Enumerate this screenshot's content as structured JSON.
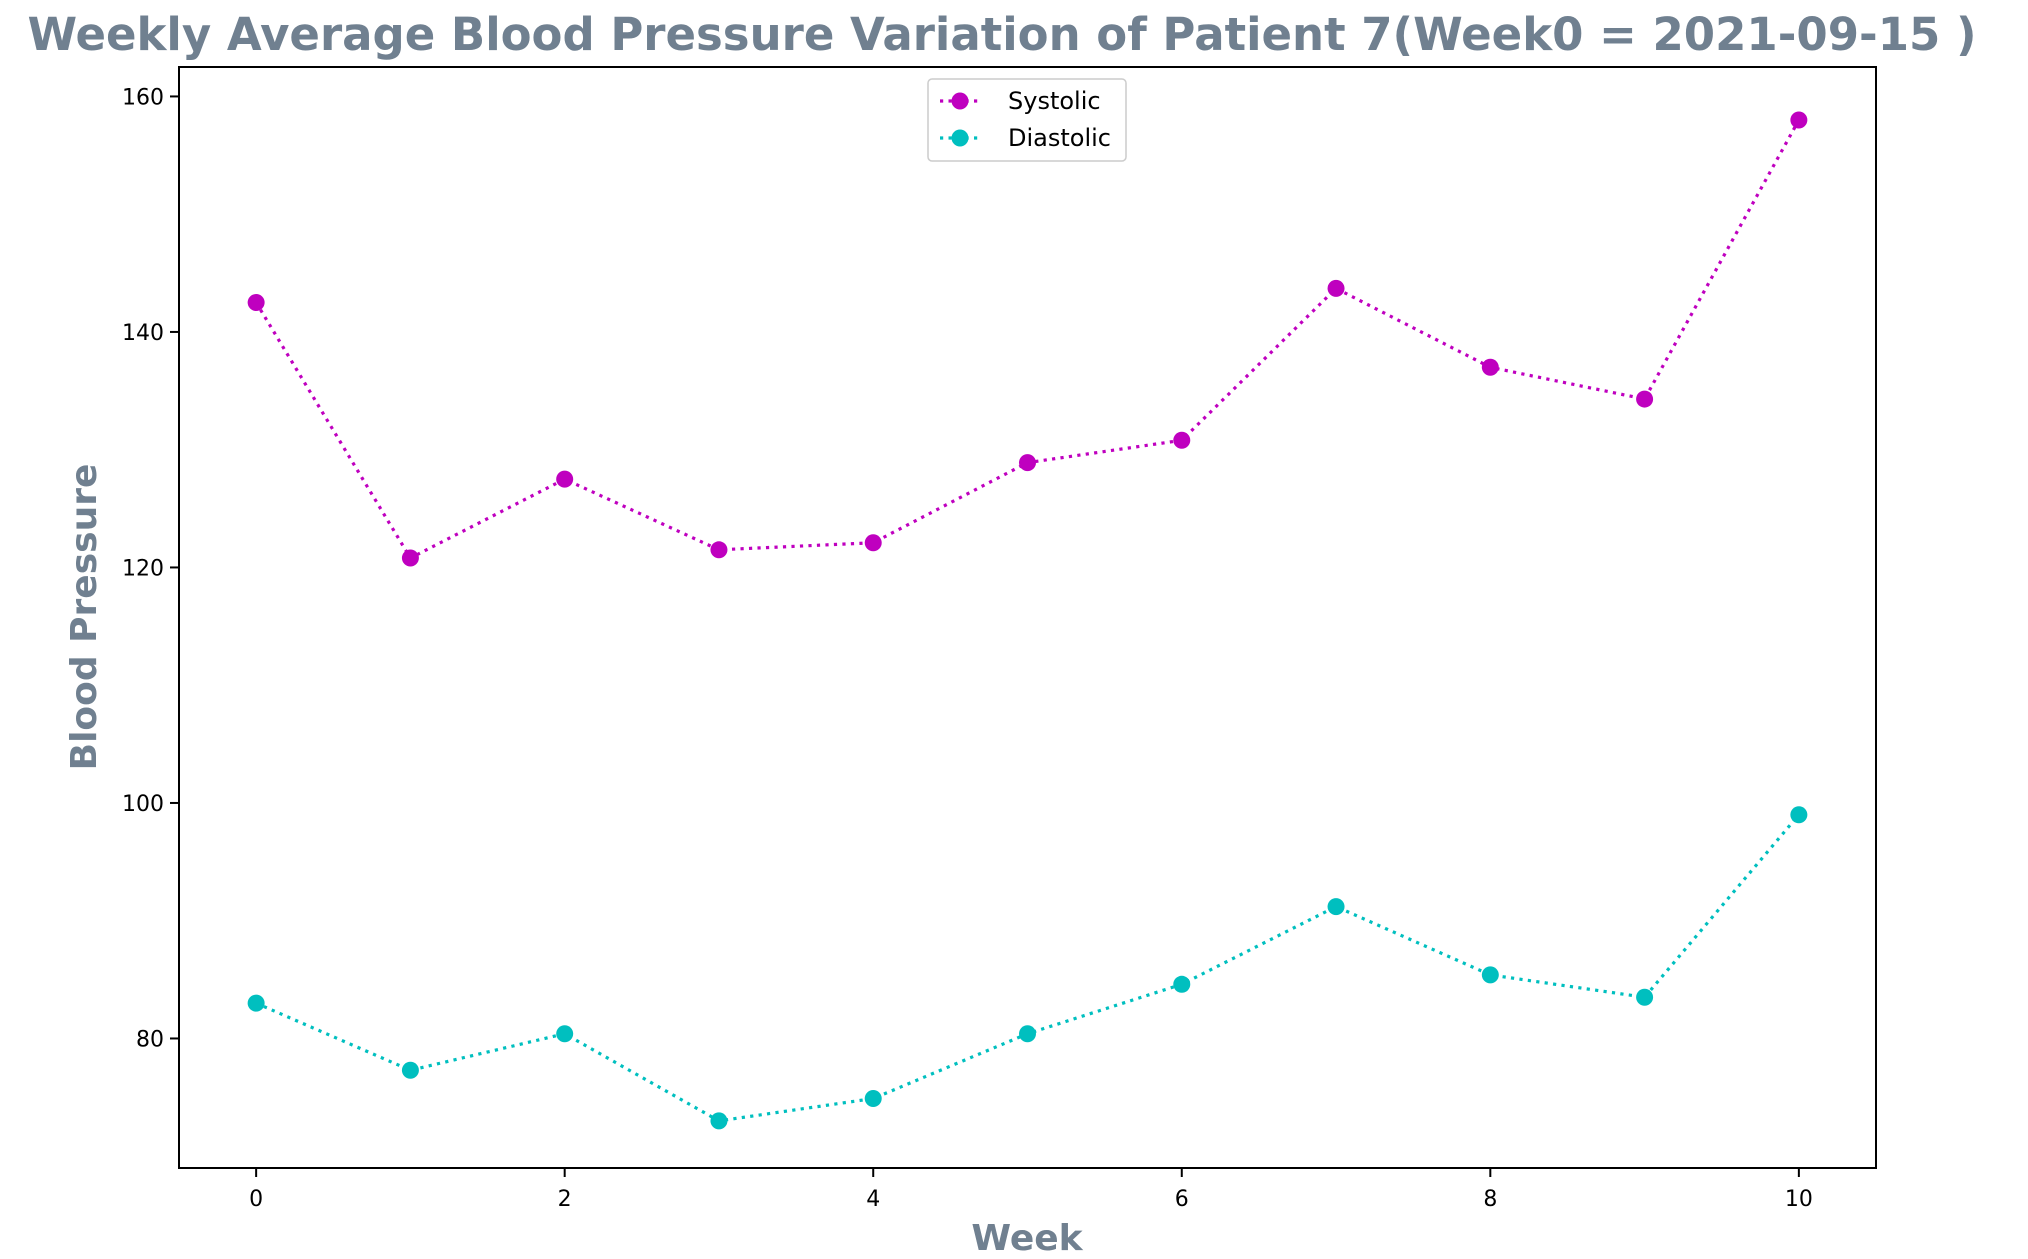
{
  "chart_data": {
    "type": "line",
    "title": "Weekly Average Blood Pressure Variation of Patient 7(Week0 = 2021-09-15 )",
    "xlabel": "Week",
    "ylabel": "Blood Pressure",
    "x": [
      0,
      1,
      2,
      3,
      4,
      5,
      6,
      7,
      8,
      9,
      10
    ],
    "xlim": [
      -0.5,
      10.5
    ],
    "ylim": [
      69,
      162.5
    ],
    "xticks": [
      0,
      2,
      4,
      6,
      8,
      10
    ],
    "yticks": [
      80,
      100,
      120,
      140,
      160
    ],
    "grid": false,
    "legend_position": "upper center",
    "series": [
      {
        "name": "Systolic",
        "color": "#bf00bf",
        "marker": "circle",
        "line_style": "dotted",
        "values": [
          142.5,
          120.8,
          127.5,
          121.5,
          122.1,
          128.9,
          130.8,
          143.7,
          137.0,
          134.3,
          158.0
        ]
      },
      {
        "name": "Diastolic",
        "color": "#00bfbf",
        "marker": "circle",
        "line_style": "dotted",
        "values": [
          83.0,
          77.3,
          80.4,
          73.0,
          74.9,
          80.4,
          84.6,
          91.2,
          85.4,
          83.5,
          99.0
        ]
      }
    ],
    "colors": {
      "title": "#708090",
      "axis_label": "#708090",
      "axes": "#000000"
    }
  }
}
